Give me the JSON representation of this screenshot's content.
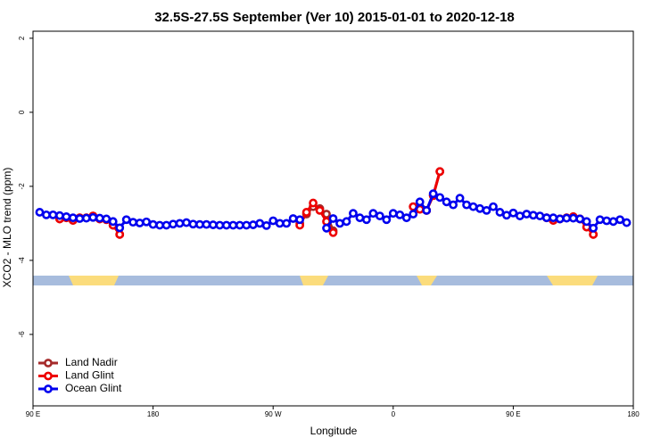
{
  "chart_data": {
    "type": "line",
    "title": "32.5S-27.5S September (Ver 10)   2015-01-01 to 2020-12-18",
    "x_label": "Longitude",
    "y_label": "XCO2 - MLO trend (ppm)",
    "x": [
      95,
      100,
      105,
      110,
      115,
      120,
      125,
      130,
      135,
      140,
      145,
      150,
      155,
      160,
      165,
      170,
      175,
      180,
      185,
      190,
      195,
      200,
      205,
      210,
      215,
      220,
      225,
      230,
      235,
      240,
      245,
      250,
      255,
      260,
      265,
      270,
      275,
      280,
      285,
      290,
      295,
      300,
      305,
      310,
      315,
      320,
      325,
      330,
      335,
      340,
      345,
      350,
      355,
      360,
      365,
      370,
      375,
      380,
      385,
      390,
      395,
      400,
      405,
      410,
      415,
      420,
      425,
      430,
      435,
      440,
      445,
      450,
      455,
      460,
      465,
      470,
      475,
      480,
      485,
      490,
      495,
      500,
      505,
      510,
      515,
      520,
      525,
      530,
      535
    ],
    "xlim": [
      90,
      540
    ],
    "xticks": [
      {
        "value": 90,
        "label": "90 E"
      },
      {
        "value": 180,
        "label": "180"
      },
      {
        "value": 270,
        "label": "90 W"
      },
      {
        "value": 360,
        "label": "0"
      },
      {
        "value": 450,
        "label": "90 E"
      },
      {
        "value": 540,
        "label": "180"
      }
    ],
    "ylim": [
      -7.93,
      2.19
    ],
    "yticks": [
      2,
      0,
      -2,
      -4,
      -6
    ],
    "legend": "bottom-left",
    "series": [
      {
        "name": "Land Nadir",
        "color": "#a52a2a",
        "values": [
          null,
          null,
          null,
          -2.88,
          -2.85,
          -2.92,
          -2.85,
          -2.85,
          -2.8,
          -2.88,
          -2.9,
          -3.05,
          -3.3,
          null,
          null,
          null,
          null,
          null,
          null,
          null,
          null,
          null,
          null,
          null,
          null,
          null,
          null,
          null,
          null,
          null,
          null,
          null,
          null,
          null,
          null,
          null,
          null,
          null,
          null,
          -3.0,
          -2.75,
          -2.55,
          -2.6,
          -2.75,
          -3.2,
          null,
          null,
          null,
          null,
          null,
          null,
          null,
          null,
          null,
          null,
          null,
          -2.55,
          -2.62,
          -2.65,
          -2.25,
          -1.6,
          null,
          null,
          null,
          null,
          null,
          null,
          null,
          null,
          null,
          null,
          null,
          null,
          null,
          null,
          null,
          -2.85,
          -2.92,
          -2.88,
          -2.85,
          -2.82,
          -2.88,
          -3.1,
          -3.3,
          null,
          null,
          null,
          null,
          null
        ]
      },
      {
        "name": "Land Glint",
        "color": "#ee0000",
        "values": [
          null,
          null,
          null,
          -2.88,
          -2.85,
          -2.92,
          -2.85,
          -2.85,
          -2.8,
          -2.88,
          -2.9,
          -3.05,
          -3.3,
          null,
          null,
          null,
          null,
          null,
          null,
          null,
          null,
          null,
          null,
          null,
          null,
          null,
          null,
          null,
          null,
          null,
          null,
          null,
          null,
          null,
          null,
          null,
          null,
          null,
          null,
          -3.05,
          -2.7,
          -2.45,
          -2.65,
          -2.95,
          -3.25,
          null,
          null,
          null,
          null,
          null,
          null,
          null,
          null,
          null,
          null,
          null,
          -2.55,
          -2.62,
          -2.65,
          -2.25,
          -1.6,
          null,
          null,
          null,
          null,
          null,
          null,
          null,
          null,
          null,
          null,
          null,
          null,
          null,
          null,
          null,
          -2.85,
          -2.92,
          -2.88,
          -2.85,
          -2.82,
          -2.88,
          -3.1,
          -3.3,
          null,
          null,
          null,
          null,
          null
        ]
      },
      {
        "name": "Ocean Glint",
        "color": "#0000ee",
        "values": [
          -2.7,
          -2.77,
          -2.77,
          -2.79,
          -2.82,
          -2.85,
          -2.87,
          -2.86,
          -2.84,
          -2.86,
          -2.88,
          -2.95,
          -3.12,
          -2.9,
          -2.97,
          -2.99,
          -2.96,
          -3.03,
          -3.05,
          -3.05,
          -3.02,
          -3.0,
          -2.98,
          -3.02,
          -3.03,
          -3.03,
          -3.04,
          -3.05,
          -3.05,
          -3.05,
          -3.05,
          -3.05,
          -3.04,
          -3.0,
          -3.06,
          -2.93,
          -3.0,
          -3.0,
          -2.87,
          -2.9,
          null,
          null,
          null,
          -3.13,
          -2.87,
          -3.0,
          -2.95,
          -2.73,
          -2.85,
          -2.9,
          -2.73,
          -2.8,
          -2.9,
          -2.73,
          -2.77,
          -2.85,
          -2.75,
          -2.42,
          -2.65,
          -2.2,
          -2.3,
          -2.42,
          -2.5,
          -2.32,
          -2.5,
          -2.55,
          -2.6,
          -2.65,
          -2.55,
          -2.7,
          -2.78,
          -2.72,
          -2.8,
          -2.75,
          -2.78,
          -2.8,
          -2.85,
          -2.85,
          -2.88,
          -2.86,
          -2.86,
          -2.88,
          -2.95,
          -3.13,
          -2.9,
          -2.93,
          -2.95,
          -2.9,
          -2.98
        ]
      }
    ]
  }
}
